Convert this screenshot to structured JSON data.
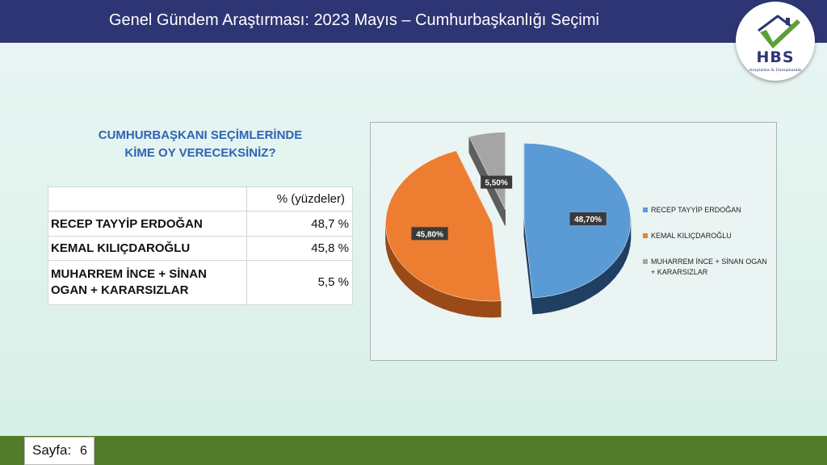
{
  "header": {
    "title": "Genel Gündem Araştırması: 2023 Mayıs – Cumhurbaşkanlığı Seçimi"
  },
  "logo": {
    "text": "HBS",
    "tagline": "Araştırma & Danışmanlık"
  },
  "question": {
    "line1": "CUMHURBAŞKANI SEÇİMLERİNDE",
    "line2": "KİME OY VERECEKSİNİZ?"
  },
  "table": {
    "header": "% (yüzdeler)",
    "rows": [
      {
        "name": "RECEP TAYYİP ERDOĞAN",
        "value": "48,7 %"
      },
      {
        "name": "KEMAL KILIÇDAROĞLU",
        "value": "45,8 %"
      },
      {
        "name_line1": "MUHARREM İNCE + SİNAN",
        "name_line2": "OGAN + KARARSIZLAR",
        "value": "5,5 %"
      }
    ]
  },
  "chart_data": {
    "type": "pie",
    "title": "",
    "labels": [
      "RECEP TAYYİP ERDOĞAN",
      "KEMAL KILIÇDAROĞLU",
      "MUHARREM İNCE + SİNAN OGAN + KARARSIZLAR"
    ],
    "values": [
      48.7,
      45.8,
      5.5
    ],
    "data_labels": [
      "48,70%",
      "45,80%",
      "5,50%"
    ],
    "legend_labels": [
      "RECEP TAYYİP ERDOĞAN",
      "KEMAL KILIÇDAROĞLU",
      "MUHARREM İNCE + SİNAN OGAN",
      "+ KARARSIZLAR"
    ],
    "colors": [
      "#5b9bd5",
      "#ed7d31",
      "#a5a5a5"
    ],
    "side_colors": [
      "#1f3f63",
      "#9a4a16",
      "#5e5e5e"
    ],
    "exploded": true,
    "style": "3d",
    "legend_position": "right"
  },
  "footer": {
    "page_label": "Sayfa:",
    "page_number": "6"
  }
}
